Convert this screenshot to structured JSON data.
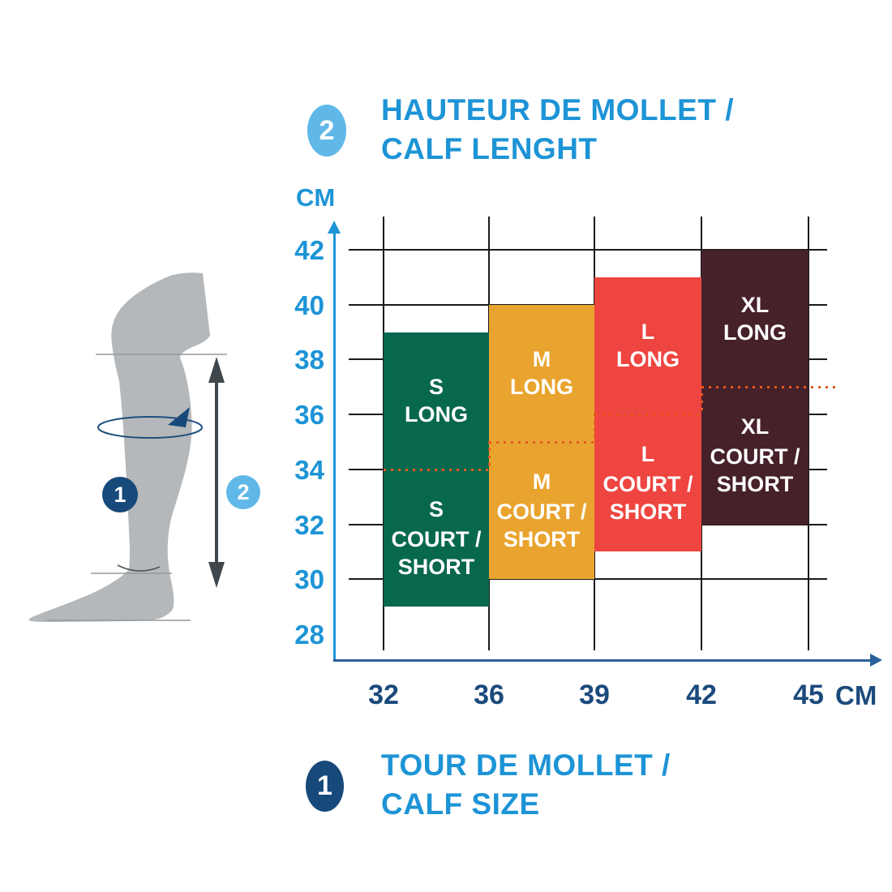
{
  "colors": {
    "light_blue": "#1d94d6",
    "navy_label": "#1b4a7c",
    "x_axis": "#2b5f9c",
    "gridline": "#1a1a1a",
    "split_dotted": "#e8571f",
    "badge_1_fill": "#17497b",
    "badge_2_fill": "#5fb8e8",
    "leg_gray": "#b5b8ba",
    "size_s": "#08684d",
    "size_m": "#e9a42f",
    "size_l": "#ee4540",
    "size_xl": "#46212a"
  },
  "header": {
    "badge": "2",
    "title_line1": "HAUTEUR DE MOLLET /",
    "title_line2": "CALF LENGHT"
  },
  "footer": {
    "badge": "1",
    "title_line1": "TOUR DE MOLLET /",
    "title_line2": "CALF SIZE"
  },
  "leg_figure": {
    "marker1": "1",
    "marker2": "2"
  },
  "chart_data": {
    "type": "bar",
    "title": "HAUTEUR DE MOLLET / CALF LENGHT",
    "xlabel": "TOUR DE MOLLET / CALF SIZE (CM)",
    "ylabel": "CALF LENGHT (CM)",
    "y_axis": {
      "unit_label": "CM",
      "ticks": [
        42,
        40,
        38,
        36,
        34,
        32,
        30,
        28
      ],
      "range": [
        27,
        43
      ],
      "gridline_min": 30
    },
    "x_axis": {
      "unit_label": "CM",
      "ticks": [
        32,
        36,
        39,
        42,
        45
      ]
    },
    "legend_position": "none",
    "grid": true,
    "sizes": [
      {
        "size": "S",
        "color": "#08684d",
        "calf_size_cm": [
          32,
          36
        ],
        "court_short_cm": [
          29,
          34
        ],
        "long_cm": [
          34,
          39
        ],
        "long_lines": [
          "S",
          "LONG"
        ],
        "short_lines": [
          "S",
          "COURT /",
          "SHORT"
        ]
      },
      {
        "size": "M",
        "color": "#e9a42f",
        "calf_size_cm": [
          36,
          39
        ],
        "court_short_cm": [
          30,
          35
        ],
        "long_cm": [
          35,
          40
        ],
        "long_lines": [
          "M",
          "LONG"
        ],
        "short_lines": [
          "M",
          "COURT /",
          "SHORT"
        ]
      },
      {
        "size": "L",
        "color": "#ee4540",
        "calf_size_cm": [
          39,
          42
        ],
        "court_short_cm": [
          31,
          36
        ],
        "long_cm": [
          36,
          41
        ],
        "long_lines": [
          "L",
          "LONG"
        ],
        "short_lines": [
          "L",
          "COURT /",
          "SHORT"
        ]
      },
      {
        "size": "XL",
        "color": "#46212a",
        "calf_size_cm": [
          42,
          45
        ],
        "court_short_cm": [
          32,
          37
        ],
        "long_cm": [
          37,
          42
        ],
        "long_lines": [
          "XL",
          "LONG"
        ],
        "short_lines": [
          "XL",
          "COURT /",
          "SHORT"
        ]
      }
    ],
    "split_line_color": "#e8571f"
  }
}
